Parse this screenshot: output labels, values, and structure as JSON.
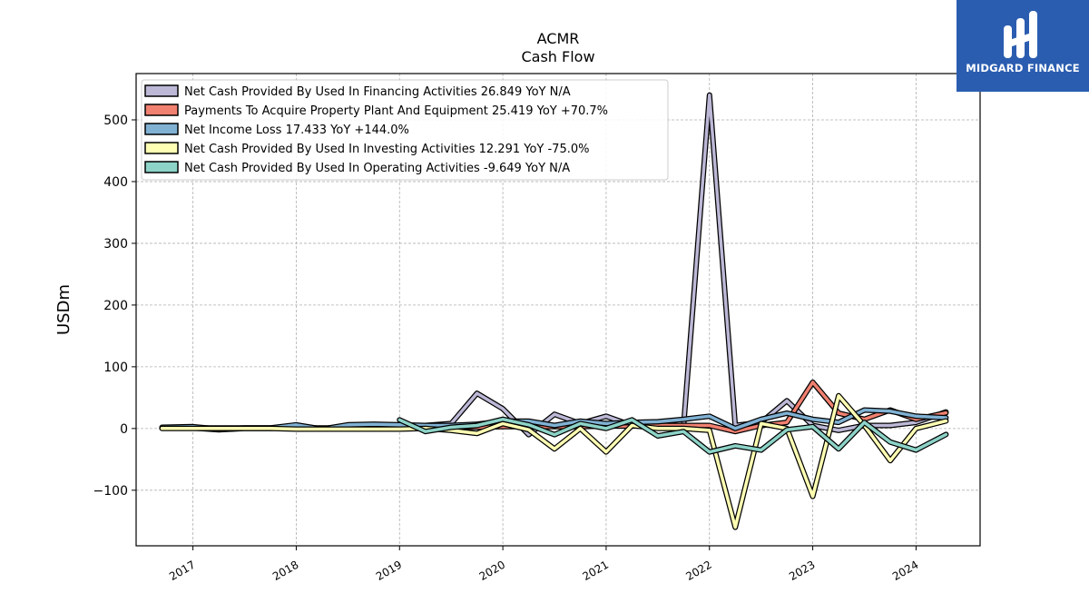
{
  "brand": {
    "name": "MIDGARD FINANCE",
    "color": "#2a5db0"
  },
  "chart_data": {
    "type": "line",
    "title": "ACMR",
    "subtitle": "Cash Flow",
    "xlabel": "",
    "ylabel": "USDm",
    "xlim": [
      2016.45,
      2024.62
    ],
    "ylim": [
      -190,
      575
    ],
    "x_ticks": [
      2017,
      2018,
      2019,
      2020,
      2021,
      2022,
      2023,
      2024
    ],
    "y_ticks": [
      -100,
      0,
      100,
      200,
      300,
      400,
      500
    ],
    "y_tick_labels": [
      "−100",
      "0",
      "100",
      "200",
      "300",
      "400",
      "500"
    ],
    "grid": true,
    "legend_position": "top-left",
    "series": [
      {
        "name": "Net Cash Provided By Used In Financing Activities  26.849 YoY N/A",
        "color": "#bcb8d6",
        "x": [
          2016.7,
          2017.0,
          2017.25,
          2017.5,
          2017.75,
          2018.0,
          2018.25,
          2018.5,
          2018.75,
          2019.0,
          2019.25,
          2019.5,
          2019.75,
          2020.0,
          2020.25,
          2020.5,
          2020.75,
          2021.0,
          2021.25,
          2021.5,
          2021.75,
          2022.0,
          2022.25,
          2022.5,
          2022.75,
          2023.0,
          2023.25,
          2023.5,
          2023.75,
          2024.0,
          2024.29
        ],
        "y": [
          1,
          1,
          -2,
          0,
          0,
          2,
          -1,
          3,
          4,
          3,
          5,
          8,
          57,
          32,
          -10,
          23,
          8,
          20,
          5,
          3,
          5,
          540,
          5,
          10,
          45,
          5,
          -3,
          5,
          5,
          10,
          26.849
        ]
      },
      {
        "name": "Payments To Acquire Property Plant And Equipment  25.419 YoY +70.7%",
        "color": "#f08070",
        "x": [
          2016.7,
          2017.0,
          2017.25,
          2017.5,
          2017.75,
          2018.0,
          2018.25,
          2018.5,
          2018.75,
          2019.0,
          2019.25,
          2019.5,
          2019.75,
          2020.0,
          2020.25,
          2020.5,
          2020.75,
          2021.0,
          2021.25,
          2021.5,
          2021.75,
          2022.0,
          2022.25,
          2022.5,
          2022.75,
          2023.0,
          2023.25,
          2023.5,
          2023.75,
          2024.0,
          2024.29
        ],
        "y": [
          1,
          1,
          1,
          1,
          1,
          1,
          1,
          1,
          1,
          2,
          2,
          2,
          2,
          3,
          3,
          3,
          3,
          4,
          4,
          5,
          5,
          5,
          -5,
          5,
          10,
          75,
          25,
          15,
          30,
          15,
          25.419
        ]
      },
      {
        "name": "Net Income Loss  17.433 YoY +144.0%",
        "color": "#80b1d3",
        "x": [
          2016.7,
          2017.0,
          2017.25,
          2017.5,
          2017.75,
          2018.0,
          2018.25,
          2018.5,
          2018.75,
          2019.0,
          2019.25,
          2019.5,
          2019.75,
          2020.0,
          2020.25,
          2020.5,
          2020.75,
          2021.0,
          2021.25,
          2021.5,
          2021.75,
          2022.0,
          2022.25,
          2022.5,
          2022.75,
          2023.0,
          2023.25,
          2023.5,
          2023.75,
          2024.0,
          2024.29
        ],
        "y": [
          2,
          3,
          -1,
          1,
          1,
          6,
          -1,
          6,
          7,
          6,
          5,
          5,
          7,
          12,
          12,
          5,
          12,
          8,
          10,
          11,
          15,
          20,
          0,
          15,
          25,
          15,
          10,
          30,
          28,
          20,
          17.433
        ]
      },
      {
        "name": "Net Cash Provided By Used In Investing Activities  12.291 YoY -75.0%",
        "color": "#ffffb3",
        "x": [
          2016.7,
          2017.0,
          2017.25,
          2017.5,
          2017.75,
          2018.0,
          2018.25,
          2018.5,
          2018.75,
          2019.0,
          2019.25,
          2019.5,
          2019.75,
          2020.0,
          2020.25,
          2020.5,
          2020.75,
          2021.0,
          2021.25,
          2021.5,
          2021.75,
          2022.0,
          2022.25,
          2022.5,
          2022.75,
          2023.0,
          2023.25,
          2023.5,
          2023.75,
          2024.0,
          2024.29
        ],
        "y": [
          0,
          0,
          0,
          0,
          0,
          -1,
          -1,
          -1,
          -1,
          -1,
          0,
          -3,
          -8,
          8,
          -2,
          -33,
          0,
          -38,
          5,
          0,
          0,
          -3,
          -160,
          8,
          0,
          -110,
          53,
          5,
          -52,
          0,
          12.291
        ]
      },
      {
        "name": "Net Cash Provided By Used In Operating Activities  -9.649 YoY N/A",
        "color": "#8dd3c7",
        "x": [
          2019.0,
          2019.25,
          2019.5,
          2019.75,
          2020.0,
          2020.25,
          2020.5,
          2020.75,
          2021.0,
          2021.25,
          2021.5,
          2021.75,
          2022.0,
          2022.25,
          2022.5,
          2022.75,
          2023.0,
          2023.25,
          2023.5,
          2023.75,
          2024.0,
          2024.29
        ],
        "y": [
          14,
          -5,
          2,
          5,
          15,
          6,
          -10,
          8,
          0,
          14,
          -12,
          -5,
          -38,
          -28,
          -35,
          -2,
          3,
          -33,
          10,
          -22,
          -35,
          -9.649
        ]
      }
    ]
  }
}
